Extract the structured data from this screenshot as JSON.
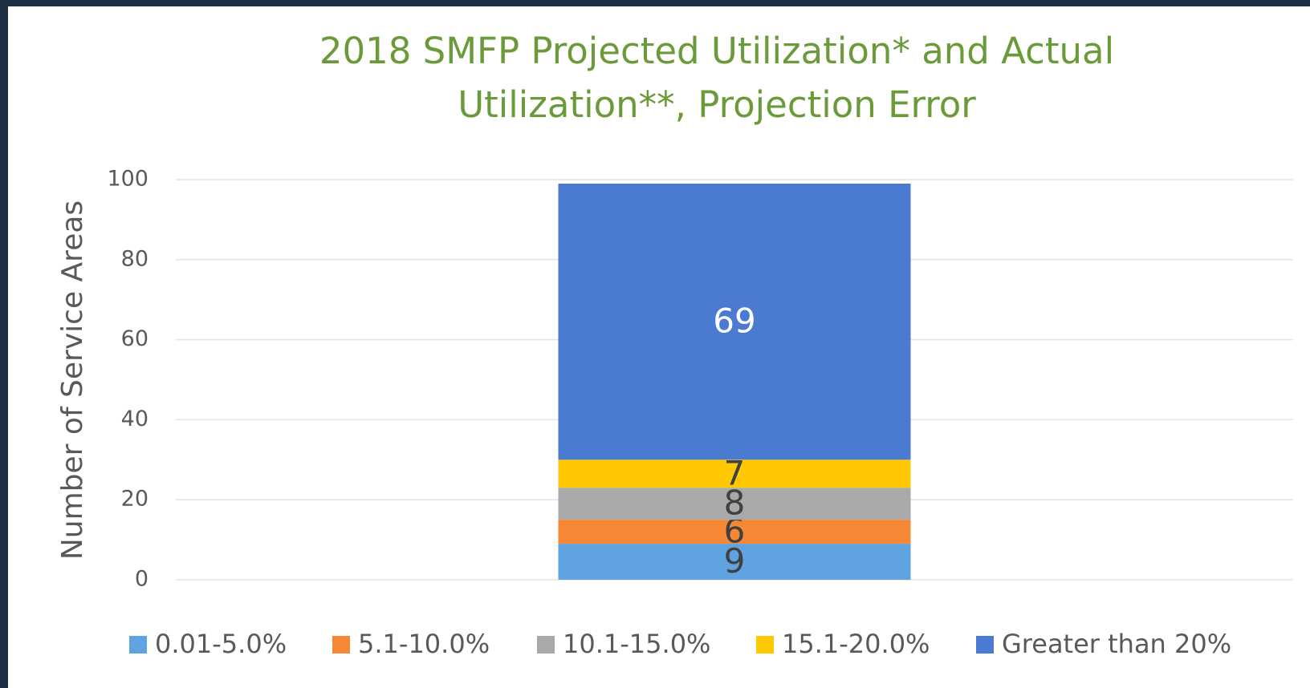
{
  "chart_data": {
    "type": "stacked_bar",
    "title": [
      "2018 SMFP Projected Utilization* and Actual",
      "Utilization**, Projection Error"
    ],
    "y_label": "Number of Service Areas",
    "categories": [
      null
    ],
    "series": [
      {
        "name": "0.01-5.0%",
        "color": "#5fa3e0",
        "label_color": "#404040",
        "values": [
          9
        ]
      },
      {
        "name": "5.1-10.0%",
        "color": "#f58735",
        "label_color": "#404040",
        "values": [
          6
        ]
      },
      {
        "name": "10.1-15.0%",
        "color": "#a9a9a9",
        "label_color": "#404040",
        "values": [
          8
        ]
      },
      {
        "name": "15.1-20.0%",
        "color": "#ffc800",
        "label_color": "#404040",
        "values": [
          7
        ]
      },
      {
        "name": "Greater than 20%",
        "color": "#4a7bd0",
        "label_color": "#ffffff",
        "values": [
          69
        ]
      }
    ],
    "ylim": [
      0,
      100
    ],
    "yticks": [
      0,
      20,
      40,
      60,
      80,
      100
    ],
    "grid": true,
    "legend": "bottom"
  }
}
